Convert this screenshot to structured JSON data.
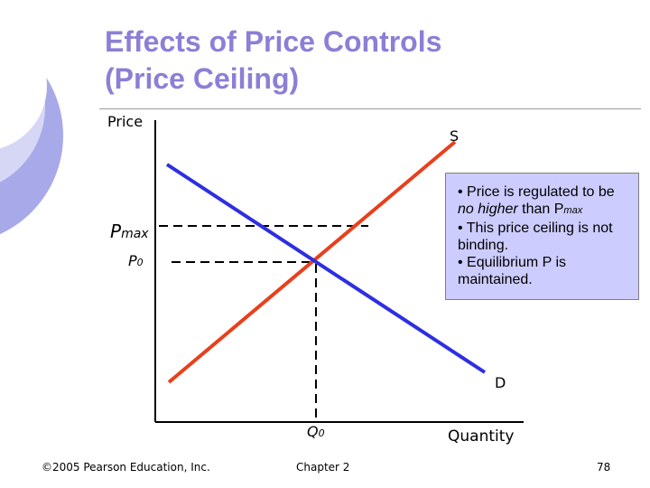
{
  "slide": {
    "title_line1": "Effects of Price Controls",
    "title_line2": "(Price Ceiling)"
  },
  "diagram": {
    "y_axis_label": "Price",
    "x_axis_label": "Quantity",
    "supply_label": "S",
    "demand_label": "D",
    "pmax_label": "P",
    "pmax_subscript": "max",
    "p0_label": "P",
    "p0_subscript": "0",
    "q0_label": "Q",
    "q0_subscript": "0"
  },
  "note": {
    "bullet1_pre": "• Price is regulated to be ",
    "bullet1_em": "no higher",
    "bullet1_mid": " than P",
    "bullet1_sub": "max",
    "bullet2": "• This price ceiling is not binding.",
    "bullet3": "• Equilibrium P is maintained."
  },
  "footer": {
    "copyright": "©2005 Pearson Education, Inc.",
    "chapter": "Chapter 2",
    "page": "78"
  },
  "colors": {
    "title": "#8b7fd6",
    "supply_curve": "#e8401c",
    "demand_curve": "#2d2fe0",
    "note_fill": "#ccccff",
    "decoration": "#a7a9e8"
  }
}
